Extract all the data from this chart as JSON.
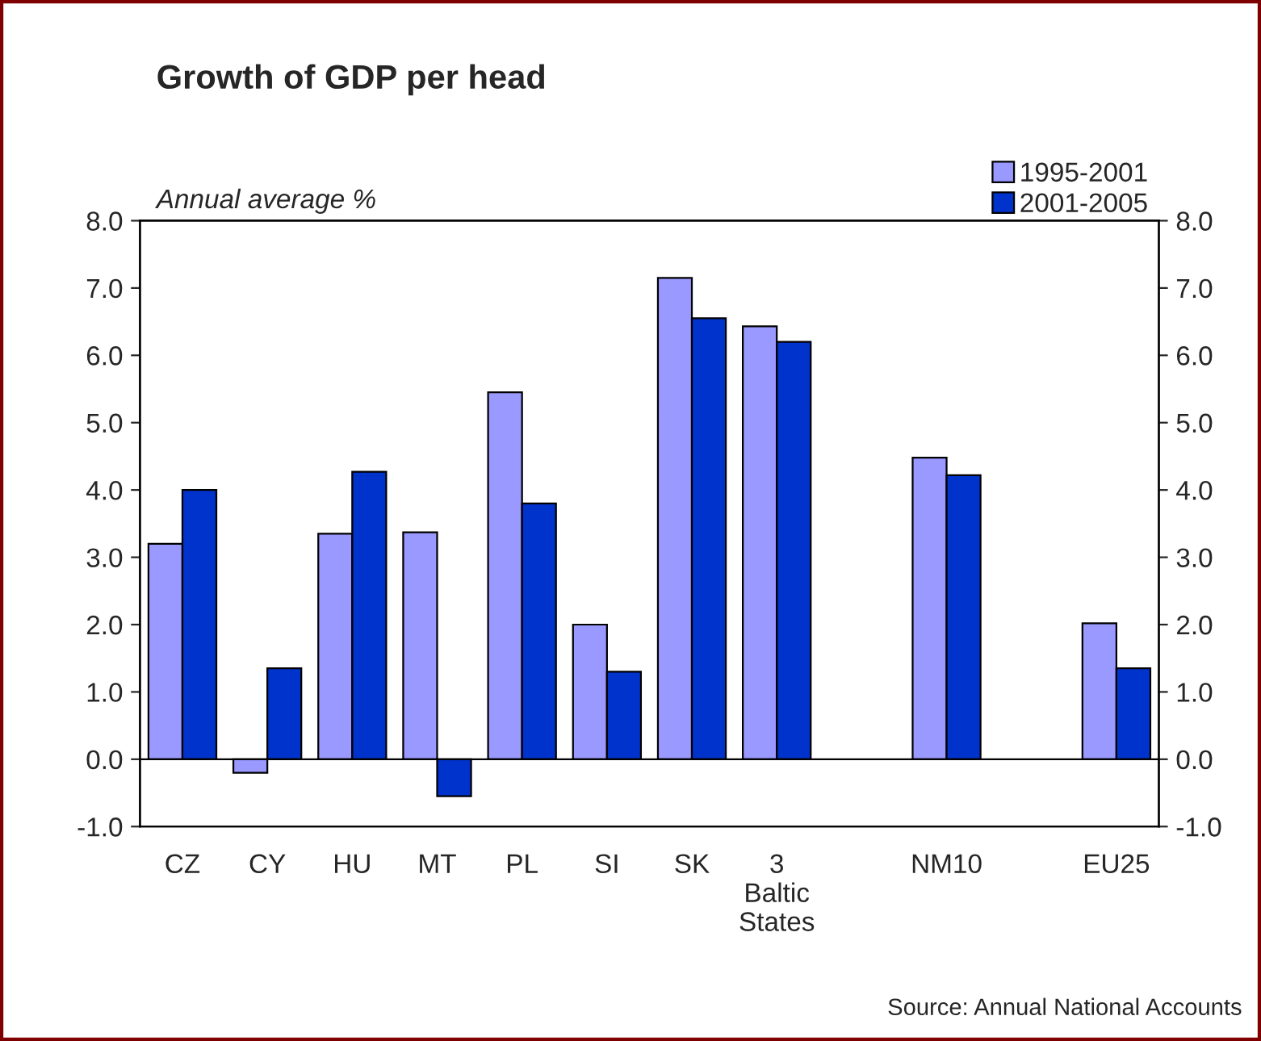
{
  "chart_data": {
    "type": "bar",
    "title": "Growth of GDP per head",
    "categories": [
      "CZ",
      "CY",
      "HU",
      "MT",
      "PL",
      "SI",
      "SK",
      "3\nBaltic\nStates",
      null,
      "NM10",
      null,
      "EU25"
    ],
    "series": [
      {
        "name": "1995-2001",
        "color": "#9999ff",
        "values": [
          3.2,
          -0.2,
          3.35,
          3.37,
          5.45,
          2.0,
          7.15,
          6.43,
          null,
          4.48,
          null,
          2.02
        ]
      },
      {
        "name": "2001-2005",
        "color": "#0033cc",
        "values": [
          4.0,
          1.35,
          4.27,
          -0.55,
          3.8,
          1.3,
          6.55,
          6.2,
          null,
          4.22,
          null,
          1.35
        ]
      }
    ],
    "ylim": [
      -1.0,
      8.0
    ],
    "yticks": [
      {
        "value": -1,
        "label": "-1.0"
      },
      {
        "value": 0,
        "label": "0.0"
      },
      {
        "value": 1,
        "label": "1.0"
      },
      {
        "value": 2,
        "label": "2.0"
      },
      {
        "value": 3,
        "label": "3.0"
      },
      {
        "value": 4,
        "label": "4.0"
      },
      {
        "value": 5,
        "label": "5.0"
      },
      {
        "value": 6,
        "label": "6.0"
      },
      {
        "value": 7,
        "label": "7.0"
      },
      {
        "value": 8,
        "label": "8.0"
      }
    ],
    "y2lim": [
      -1.0,
      8.0
    ],
    "y2ticks": [
      {
        "value": -1,
        "label": "-1.0"
      },
      {
        "value": 0,
        "label": "0.0"
      },
      {
        "value": 1,
        "label": "1.0"
      },
      {
        "value": 2,
        "label": "2.0"
      },
      {
        "value": 3,
        "label": "3.0"
      },
      {
        "value": 4,
        "label": "4.0"
      },
      {
        "value": 5,
        "label": "5.0"
      },
      {
        "value": 6,
        "label": "6.0"
      },
      {
        "value": 7,
        "label": "7.0"
      },
      {
        "value": 8,
        "label": "8.0"
      }
    ],
    "annotations": [
      "Annual average %",
      "Source: Annual National Accounts"
    ],
    "legend": "top right"
  }
}
